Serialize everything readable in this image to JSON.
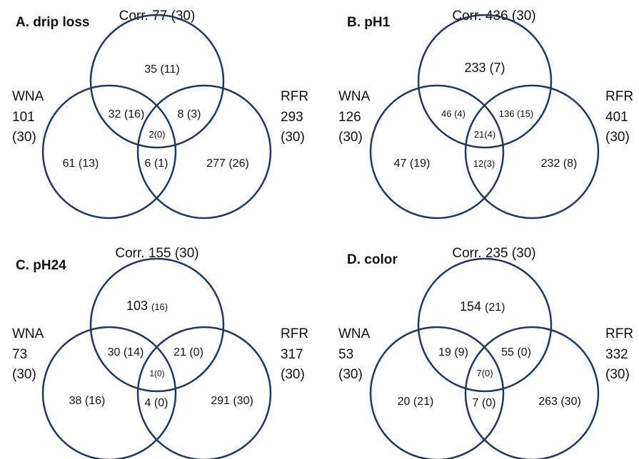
{
  "panels": [
    {
      "title": "A. drip loss",
      "corr": "Corr. 77 (30)",
      "wna": [
        "WNA",
        "101",
        "(30)"
      ],
      "rfr": [
        "RFR",
        "293",
        "(30)"
      ],
      "regions": {
        "corr_only": "35 (11)",
        "wna_corr": "32 (16)",
        "corr_rfr": "8 (3)",
        "all": "2(0)",
        "wna_only": "61 (13)",
        "wna_rfr": "6 (1)",
        "rfr_only": "277 (26)"
      }
    },
    {
      "title": "B. pH1",
      "corr": "Corr. 436 (30)",
      "wna": [
        "WNA",
        "126",
        "(30)"
      ],
      "rfr": [
        "RFR",
        "401",
        "(30)"
      ],
      "regions": {
        "corr_only": "233 (7)",
        "wna_corr": "46 (4)",
        "corr_rfr": "136 (15)",
        "all": "21(4)",
        "wna_only": "47 (19)",
        "wna_rfr": "12(3)",
        "rfr_only": "232 (8)"
      }
    },
    {
      "title": "C. pH24",
      "corr": "Corr. 155 (30)",
      "wna": [
        "WNA",
        "73",
        "(30)"
      ],
      "rfr": [
        "RFR",
        "317",
        "(30)"
      ],
      "regions": {
        "corr_only_num": "103",
        "corr_only_paren": "(16)",
        "wna_corr": "30 (14)",
        "corr_rfr": "21 (0)",
        "all": "1(0)",
        "wna_only": "38 (16)",
        "wna_rfr": "4 (0)",
        "rfr_only": "291 (30)"
      }
    },
    {
      "title": "D. color",
      "corr": "Corr. 235 (30)",
      "wna": [
        "WNA",
        "53",
        "(30)"
      ],
      "rfr": [
        "RFR",
        "332",
        "(30)"
      ],
      "regions": {
        "corr_only_num": "154",
        "corr_only_paren": "(21)",
        "wna_corr": "19 (9)",
        "corr_rfr": "55 (0)",
        "all": "7(0)",
        "wna_only": "20 (21)",
        "wna_rfr": "7 (0)",
        "rfr_only": "263 (30)"
      }
    }
  ]
}
